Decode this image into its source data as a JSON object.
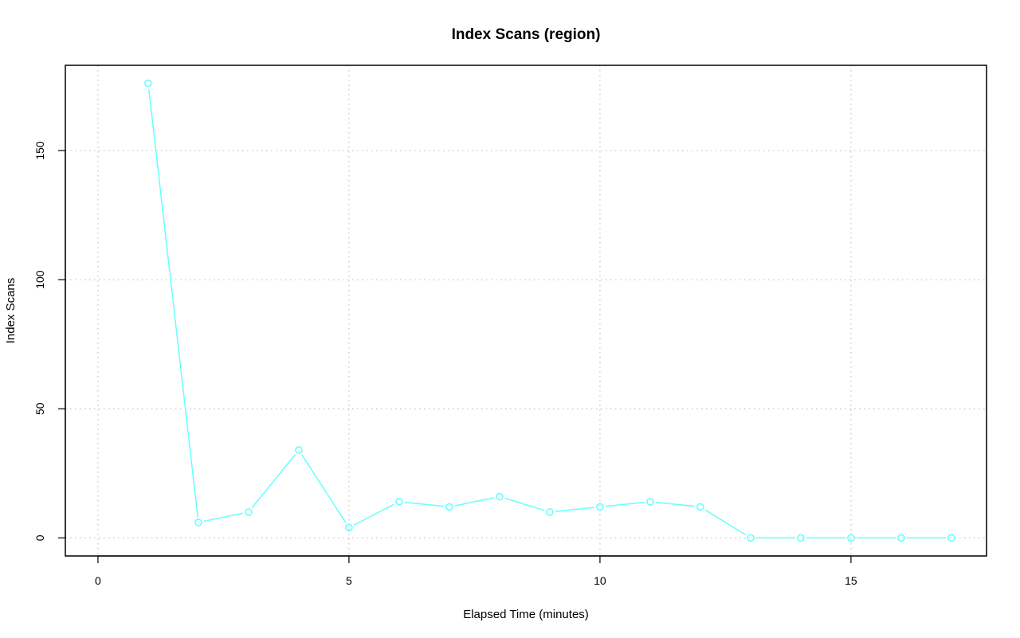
{
  "chart_data": {
    "type": "line",
    "title": "Index Scans (region)",
    "xlabel": "Elapsed Time (minutes)",
    "ylabel": "Index Scans",
    "xlim": [
      -0.65,
      17.7
    ],
    "ylim": [
      -7,
      183
    ],
    "x_ticks": [
      0,
      5,
      10,
      15
    ],
    "y_ticks": [
      0,
      50,
      100,
      150
    ],
    "grid": true,
    "series_color": "#66FFFF",
    "series": [
      {
        "x": [
          1,
          2,
          3,
          4,
          5,
          6,
          7,
          8,
          9,
          10,
          11,
          12,
          13,
          14,
          15,
          16,
          17
        ],
        "y": [
          176,
          6,
          10,
          34,
          4,
          14,
          12,
          16,
          10,
          12,
          14,
          12,
          0,
          0,
          0,
          0,
          0
        ]
      }
    ]
  }
}
